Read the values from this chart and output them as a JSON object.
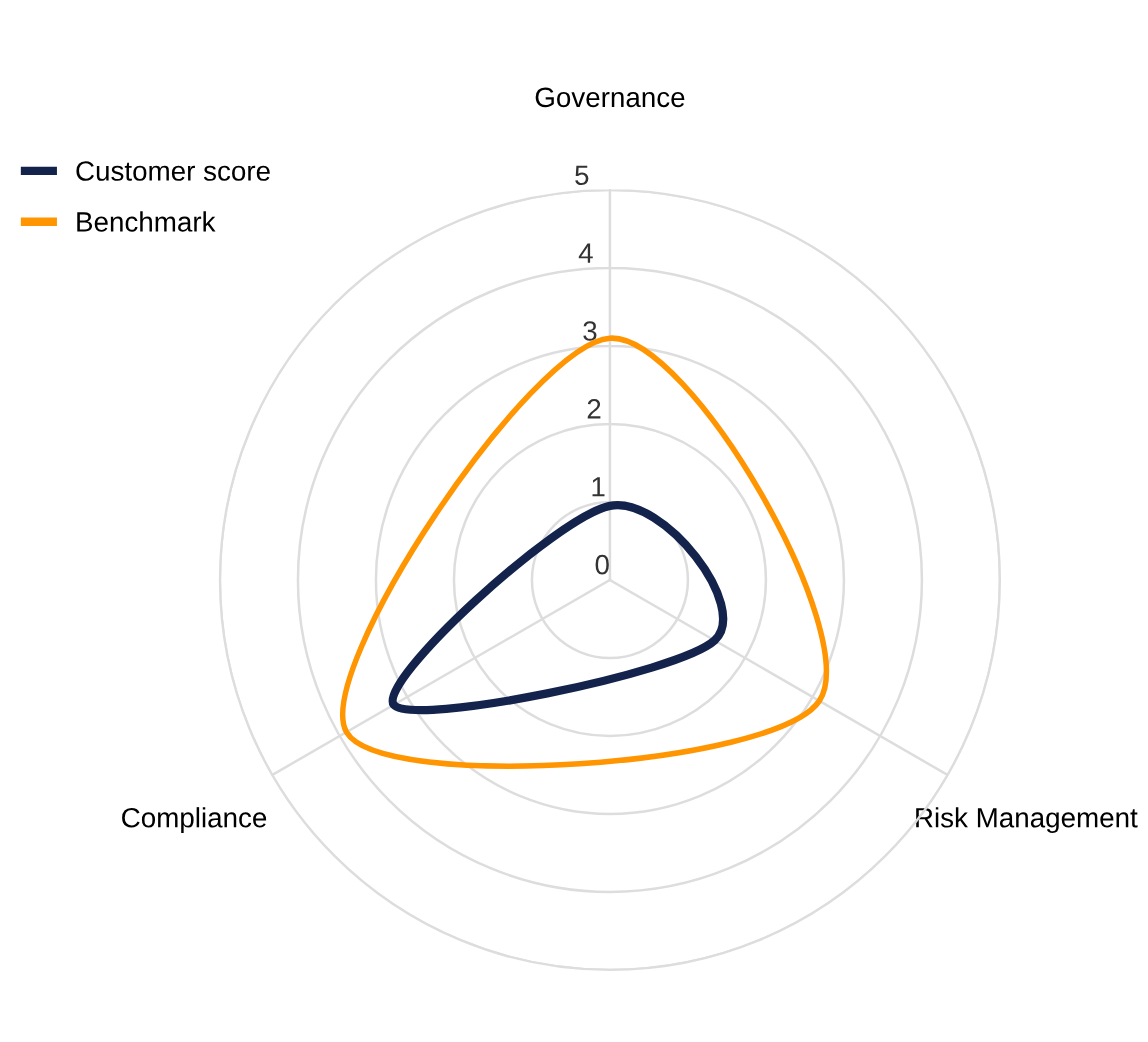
{
  "chart_data": {
    "type": "radar",
    "categories": [
      "Governance",
      "Risk Management",
      "Compliance"
    ],
    "series": [
      {
        "name": "Customer score",
        "color": "#14234b",
        "values": [
          0.95,
          1.55,
          3.2
        ]
      },
      {
        "name": "Benchmark",
        "color": "#ff9500",
        "values": [
          3.1,
          3.1,
          3.9
        ]
      }
    ],
    "ylim": [
      0,
      5
    ],
    "yticks": [
      0,
      1,
      2,
      3,
      4,
      5
    ],
    "grid": true,
    "legend": "top left",
    "marker": "none",
    "line_style": "solid"
  }
}
